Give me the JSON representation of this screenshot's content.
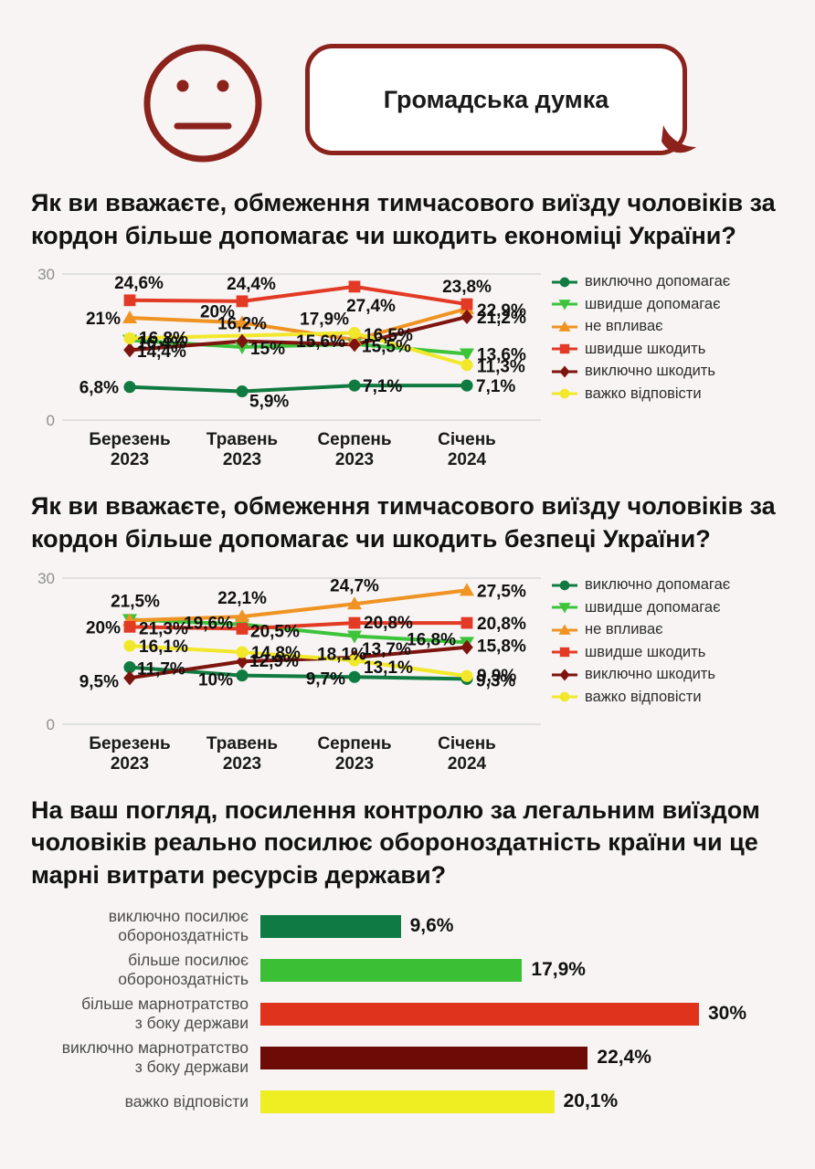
{
  "header": {
    "bubble_text": "Громадська думка",
    "face_icon": "neutral-face",
    "accent_color": "#8b221c"
  },
  "chart_data": [
    {
      "type": "line",
      "title": "Як ви вважаєте, обмеження тимчасового виїзду чоловіків за кордон більше допомагає чи шкодить економіці України?",
      "categories": [
        [
          "Березень",
          "2023"
        ],
        [
          "Травень",
          "2023"
        ],
        [
          "Серпень",
          "2023"
        ],
        [
          "Січень",
          "2024"
        ]
      ],
      "ylim": [
        0,
        30
      ],
      "ytick_labels": [
        "30",
        "0"
      ],
      "grid": "horizontal-edges-only",
      "legend_position": "right",
      "series": [
        {
          "name": "виключно допомагає",
          "color": "#117a40",
          "marker": "circle",
          "values": [
            6.8,
            5.9,
            7.1,
            7.1
          ],
          "labels": [
            "6,8%",
            "5,9%",
            "7,1%",
            "7,1%"
          ],
          "label_offsets": [
            [
              -12,
              7,
              "e"
            ],
            [
              8,
              17,
              "s"
            ],
            [
              9,
              7,
              "s"
            ],
            [
              10,
              7,
              "s"
            ]
          ]
        },
        {
          "name": "швидше допомагає",
          "color": "#3dc43b",
          "marker": "triangle-down",
          "values": [
            16.4,
            15,
            15.6,
            13.6
          ],
          "labels": [
            "16,4%",
            "15%",
            "15,6%",
            "13,6%"
          ],
          "label_offsets": [
            [
              8,
              9,
              "s"
            ],
            [
              9,
              8,
              "s"
            ],
            [
              -10,
              3,
              "e"
            ],
            [
              11,
              7,
              "s"
            ]
          ]
        },
        {
          "name": "не впливає",
          "color": "#ef9322",
          "marker": "triangle-up",
          "values": [
            21,
            20,
            16.5,
            22.9
          ],
          "labels": [
            "21%",
            "20%",
            "16,5%",
            "22,9%"
          ],
          "label_offsets": [
            [
              -10,
              7,
              "e"
            ],
            [
              -8,
              -6,
              "e"
            ],
            [
              10,
              1,
              "s"
            ],
            [
              11,
              8,
              "s"
            ]
          ]
        },
        {
          "name": "швидше шкодить",
          "color": "#e23a25",
          "marker": "square",
          "values": [
            24.6,
            24.4,
            27.4,
            23.8
          ],
          "labels": [
            "24,6%",
            "24,4%",
            "27,4%",
            "23,8%"
          ],
          "label_offsets": [
            [
              10,
              -13,
              "m"
            ],
            [
              10,
              -13,
              "m"
            ],
            [
              18,
              27,
              "m"
            ],
            [
              0,
              -13,
              "m"
            ]
          ]
        },
        {
          "name": "виключно шкодить",
          "color": "#7d140d",
          "marker": "diamond",
          "values": [
            14.4,
            16.2,
            15.5,
            21.2
          ],
          "labels": [
            "14,4%",
            "16,2%",
            "15,5%",
            "21,2%"
          ],
          "label_offsets": [
            [
              8,
              8,
              "s"
            ],
            [
              0,
              -13,
              "m"
            ],
            [
              8,
              8,
              "s"
            ],
            [
              11,
              7,
              "s"
            ]
          ]
        },
        {
          "name": "важко відповісти",
          "color": "#f2e82b",
          "marker": "circle",
          "values": [
            16.8,
            null,
            17.9,
            11.3
          ],
          "labels": [
            "16,8%",
            "",
            "17,9%",
            "11,3%"
          ],
          "label_offsets": [
            [
              10,
              6,
              "s"
            ],
            [
              0,
              0,
              "s"
            ],
            [
              -6,
              -9,
              "e"
            ],
            [
              11,
              8,
              "s"
            ]
          ]
        }
      ]
    },
    {
      "type": "line",
      "title": "Як ви вважаєте, обмеження тимчасового виїзду чоловіків за кордон більше допомагає чи шкодить безпеці України?",
      "categories": [
        [
          "Березень",
          "2023"
        ],
        [
          "Травень",
          "2023"
        ],
        [
          "Серпень",
          "2023"
        ],
        [
          "Січень",
          "2024"
        ]
      ],
      "ylim": [
        0,
        30
      ],
      "ytick_labels": [
        "30",
        "0"
      ],
      "grid": "horizontal-edges-only",
      "legend_position": "right",
      "series": [
        {
          "name": "виключно допомагає",
          "color": "#117a40",
          "marker": "circle",
          "values": [
            11.7,
            10,
            9.7,
            9.3
          ],
          "labels": [
            "11,7%",
            "10%",
            "9,7%",
            "9,3%"
          ],
          "label_offsets": [
            [
              8,
              8,
              "s"
            ],
            [
              -10,
              11,
              "e"
            ],
            [
              -10,
              8,
              "e"
            ],
            [
              10,
              8,
              "s"
            ]
          ]
        },
        {
          "name": "швидше допомагає",
          "color": "#3dc43b",
          "marker": "triangle-down",
          "values": [
            21.5,
            20.5,
            18.1,
            16.8
          ],
          "labels": [
            "21,5%",
            "20,5%",
            "18,1%",
            "16,8%"
          ],
          "label_offsets": [
            [
              6,
              -14,
              "m"
            ],
            [
              9,
              14,
              "s"
            ],
            [
              -14,
              26,
              "m"
            ],
            [
              -12,
              3,
              "e"
            ]
          ]
        },
        {
          "name": "не впливає",
          "color": "#ef9322",
          "marker": "triangle-up",
          "values": [
            21.3,
            22.1,
            24.7,
            27.5
          ],
          "labels": [
            "21,3%",
            "22,1%",
            "24,7%",
            "27,5%"
          ],
          "label_offsets": [
            [
              10,
              15,
              "s"
            ],
            [
              0,
              -14,
              "m"
            ],
            [
              0,
              -14,
              "m"
            ],
            [
              11,
              7,
              "s"
            ]
          ]
        },
        {
          "name": "швидше шкодить",
          "color": "#e23a25",
          "marker": "square",
          "values": [
            20,
            19.6,
            20.8,
            20.8
          ],
          "labels": [
            "20%",
            "19,6%",
            "20,8%",
            "20,8%"
          ],
          "label_offsets": [
            [
              -10,
              7,
              "e"
            ],
            [
              -10,
              0,
              "e"
            ],
            [
              10,
              6,
              "s"
            ],
            [
              11,
              7,
              "s"
            ]
          ]
        },
        {
          "name": "виключно шкодить",
          "color": "#7d140d",
          "marker": "diamond",
          "values": [
            9.5,
            12.9,
            13.7,
            15.8
          ],
          "labels": [
            "9,5%",
            "12,9%",
            "13,7%",
            "15,8%"
          ],
          "label_offsets": [
            [
              -12,
              10,
              "e"
            ],
            [
              8,
              6,
              "s"
            ],
            [
              8,
              -3,
              "s"
            ],
            [
              11,
              5,
              "s"
            ]
          ]
        },
        {
          "name": "важко відповісти",
          "color": "#f2e82b",
          "marker": "circle",
          "values": [
            16.1,
            14.8,
            13.1,
            9.9
          ],
          "labels": [
            "16,1%",
            "14,8%",
            "13,1%",
            "9,9%"
          ],
          "label_offsets": [
            [
              10,
              7,
              "s"
            ],
            [
              10,
              7,
              "s"
            ],
            [
              10,
              14,
              "s"
            ],
            [
              11,
              6,
              "s"
            ]
          ]
        }
      ]
    },
    {
      "type": "bar",
      "orientation": "horizontal",
      "title": "На ваш погляд, посилення контролю за легальним виїздом чоловіків реально посилює обороноздатність країни чи це марні витрати ресурсів держави?",
      "categories": [
        [
          "виключно посилює",
          "обороноздатність"
        ],
        [
          "більше посилює",
          "обороноздатність"
        ],
        [
          "більше марнотратство",
          "з боку держави"
        ],
        [
          "виключно марнотратство",
          "з боку держави"
        ],
        [
          "важко відповісти"
        ]
      ],
      "values": [
        9.6,
        17.9,
        30,
        22.4,
        20.1
      ],
      "labels": [
        "9,6%",
        "17,9%",
        "30%",
        "22,4%",
        "20,1%"
      ],
      "colors": [
        "#0f7a44",
        "#3abf35",
        "#e0331b",
        "#6d0b06",
        "#eeee22"
      ],
      "xmax": 30,
      "grid": "off"
    }
  ]
}
